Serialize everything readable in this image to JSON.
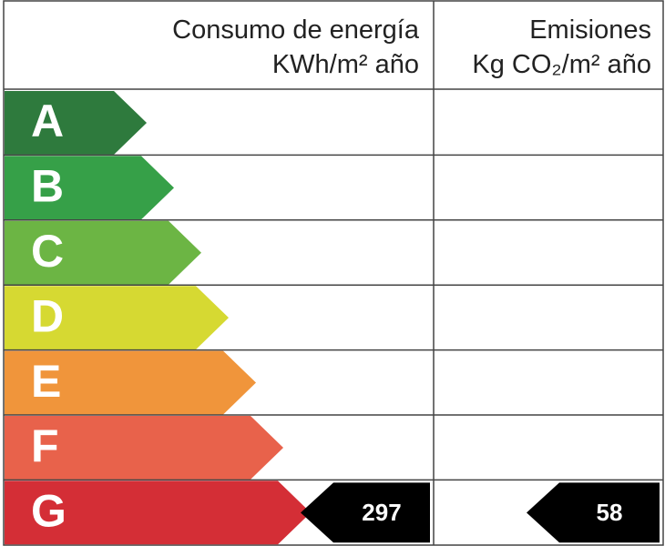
{
  "header": {
    "energy_title": "Consumo de energía",
    "energy_unit": "KWh/m² año",
    "emissions_title": "Emisiones",
    "emissions_unit": "Kg CO₂/m² año"
  },
  "ratings": [
    {
      "letter": "A",
      "color": "#2e7a3d"
    },
    {
      "letter": "B",
      "color": "#36a048"
    },
    {
      "letter": "C",
      "color": "#6cb544"
    },
    {
      "letter": "D",
      "color": "#d6d932"
    },
    {
      "letter": "E",
      "color": "#f0953b"
    },
    {
      "letter": "F",
      "color": "#e8624b"
    },
    {
      "letter": "G",
      "color": "#d42e36",
      "energy": 297,
      "emissions": 58
    }
  ]
}
